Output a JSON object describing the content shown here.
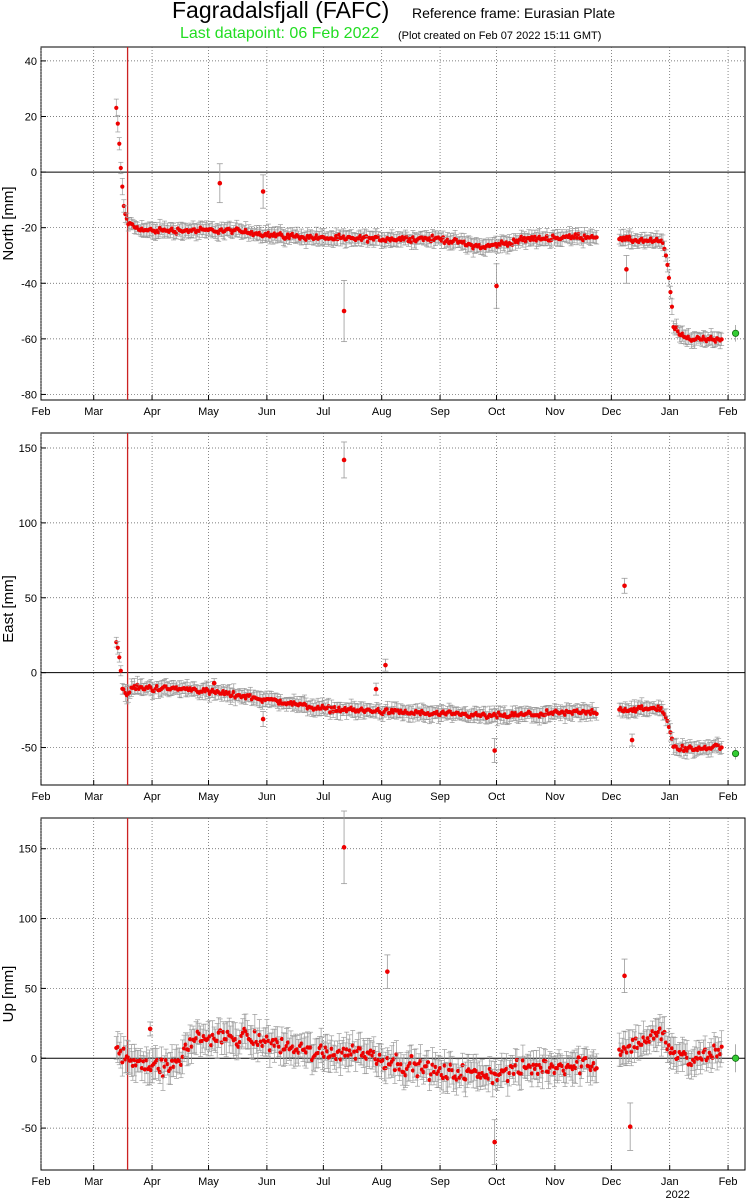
{
  "header": {
    "title": "Fagradalsfjall (FAFC)",
    "reference_frame": "Reference frame: Eurasian Plate",
    "last_datapoint": "Last datapoint: 06 Feb 2022",
    "plot_created": "(Plot created on Feb 07 2022 15:11 GMT)",
    "last_datapoint_color": "#22dd22"
  },
  "colors": {
    "data_points": "#ee0000",
    "error_bars": "#9a9a9a",
    "event_line": "#cc2222",
    "latest_point": "#33cc33"
  },
  "chart_data": [
    {
      "type": "scatter",
      "ylabel": "North [mm]",
      "ylim": [
        -82,
        45
      ],
      "yticks": [
        -80,
        -60,
        -40,
        -20,
        0,
        20,
        40
      ],
      "xlim": [
        0,
        374
      ],
      "xticks": [
        "Feb",
        "Mar",
        "Apr",
        "May",
        "Jun",
        "Jul",
        "Aug",
        "Sep",
        "Oct",
        "Nov",
        "Dec",
        "Jan",
        "Feb"
      ],
      "xtick_days": [
        0,
        28,
        59,
        89,
        120,
        150,
        181,
        212,
        242,
        273,
        303,
        334,
        365
      ],
      "event_day": 46,
      "grid": true,
      "trend": [
        [
          40,
          23
        ],
        [
          41,
          16
        ],
        [
          42,
          5
        ],
        [
          43,
          -4
        ],
        [
          44,
          -12
        ],
        [
          45,
          -16
        ],
        [
          47,
          -19
        ],
        [
          55,
          -21
        ],
        [
          100,
          -21
        ],
        [
          130,
          -23
        ],
        [
          160,
          -24
        ],
        [
          212,
          -24
        ],
        [
          235,
          -27
        ],
        [
          260,
          -24
        ],
        [
          296,
          -23
        ],
        [
          300,
          -24
        ],
        [
          330,
          -25
        ],
        [
          332,
          -30
        ],
        [
          334,
          -40
        ],
        [
          336,
          -55
        ],
        [
          340,
          -59
        ],
        [
          346,
          -60
        ],
        [
          362,
          -60
        ]
      ],
      "gap": [
        296,
        307
      ],
      "outliers": [
        [
          95,
          -4,
          7
        ],
        [
          118,
          -7,
          6
        ],
        [
          161,
          -50,
          11
        ],
        [
          242,
          -41,
          8
        ],
        [
          311,
          -35,
          5
        ]
      ],
      "latest": [
        369,
        -58,
        3
      ]
    },
    {
      "type": "scatter",
      "ylabel": "East [mm]",
      "ylim": [
        -75,
        160
      ],
      "yticks": [
        -50,
        0,
        50,
        100,
        150
      ],
      "xlim": [
        0,
        374
      ],
      "xticks": [
        "Feb",
        "Mar",
        "Apr",
        "May",
        "Jun",
        "Jul",
        "Aug",
        "Sep",
        "Oct",
        "Nov",
        "Dec",
        "Jan",
        "Feb"
      ],
      "xtick_days": [
        0,
        28,
        59,
        89,
        120,
        150,
        181,
        212,
        242,
        273,
        303,
        334,
        365
      ],
      "event_day": 46,
      "grid": true,
      "trend": [
        [
          40,
          20
        ],
        [
          41,
          16
        ],
        [
          42,
          5
        ],
        [
          43,
          -8
        ],
        [
          44,
          -12
        ],
        [
          46,
          -16
        ],
        [
          48,
          -10
        ],
        [
          80,
          -11
        ],
        [
          110,
          -16
        ],
        [
          150,
          -24
        ],
        [
          200,
          -27
        ],
        [
          240,
          -29
        ],
        [
          296,
          -26
        ],
        [
          300,
          -25
        ],
        [
          330,
          -24
        ],
        [
          332,
          -30
        ],
        [
          334,
          -38
        ],
        [
          336,
          -50
        ],
        [
          345,
          -51
        ],
        [
          362,
          -49
        ]
      ],
      "gap": [
        296,
        307
      ],
      "outliers": [
        [
          92,
          -7,
          3
        ],
        [
          118,
          -31,
          5
        ],
        [
          161,
          142,
          12
        ],
        [
          178,
          -11,
          4
        ],
        [
          183,
          5,
          4
        ],
        [
          241,
          -52,
          8
        ],
        [
          310,
          58,
          5
        ],
        [
          314,
          -45,
          4
        ]
      ],
      "latest": [
        369,
        -54,
        4
      ]
    },
    {
      "type": "scatter",
      "ylabel": "Up [mm]",
      "ylim": [
        -80,
        172
      ],
      "yticks": [
        -50,
        0,
        50,
        100,
        150
      ],
      "xlim": [
        0,
        374
      ],
      "xticks": [
        "Feb",
        "Mar",
        "Apr",
        "May",
        "Jun",
        "Jul",
        "Aug",
        "Sep",
        "Oct",
        "Nov",
        "Dec",
        "Jan",
        "Feb"
      ],
      "xtick_days": [
        0,
        28,
        59,
        89,
        120,
        150,
        181,
        212,
        242,
        273,
        303,
        334,
        365
      ],
      "year_label": "2022",
      "event_day": 46,
      "grid": true,
      "trend": [
        [
          40,
          3
        ],
        [
          55,
          -3
        ],
        [
          66,
          -8
        ],
        [
          75,
          0
        ],
        [
          80,
          14
        ],
        [
          110,
          15
        ],
        [
          125,
          10
        ],
        [
          145,
          4
        ],
        [
          170,
          5
        ],
        [
          185,
          -2
        ],
        [
          210,
          -10
        ],
        [
          240,
          -12
        ],
        [
          260,
          -7
        ],
        [
          296,
          -4
        ],
        [
          300,
          3
        ],
        [
          320,
          12
        ],
        [
          330,
          18
        ],
        [
          335,
          5
        ],
        [
          345,
          -3
        ],
        [
          362,
          6
        ]
      ],
      "gap": [
        296,
        307
      ],
      "outliers": [
        [
          58,
          21,
          5
        ],
        [
          161,
          151,
          26
        ],
        [
          184,
          62,
          12
        ],
        [
          241,
          -60,
          16
        ],
        [
          310,
          59,
          12
        ],
        [
          313,
          -49,
          17
        ]
      ],
      "latest": [
        369,
        0,
        10
      ]
    }
  ]
}
